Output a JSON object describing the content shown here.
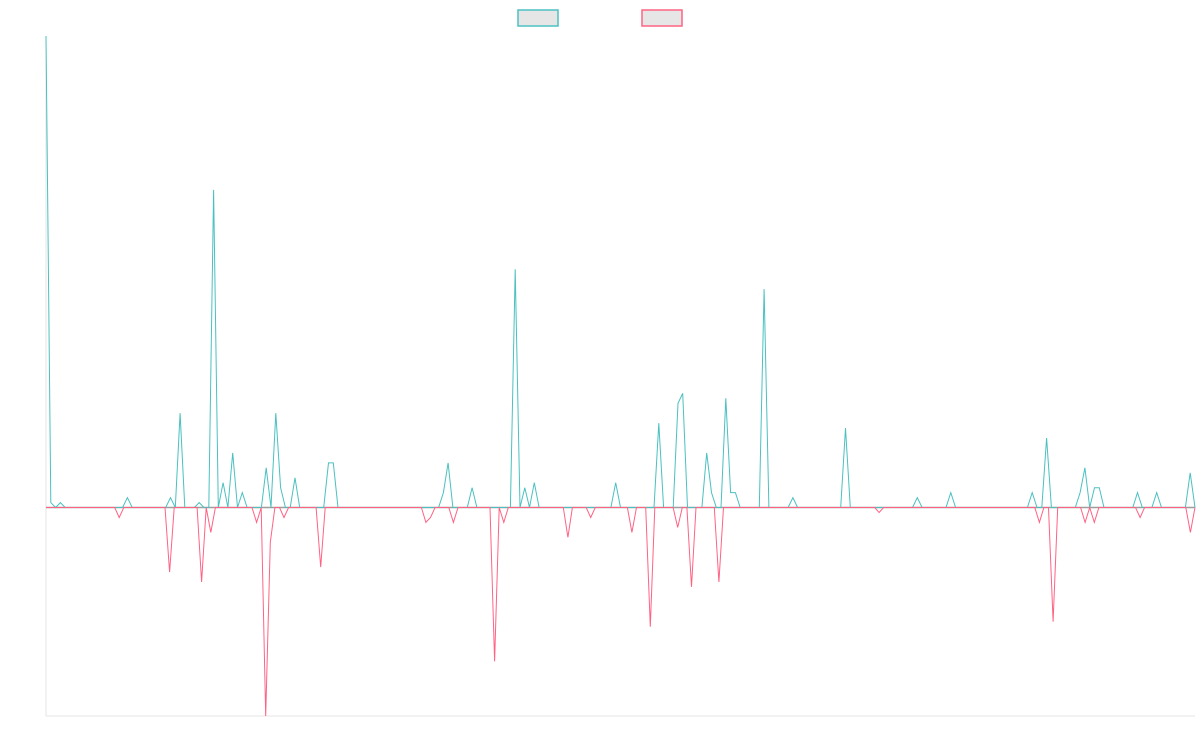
{
  "chart_data": {
    "type": "line",
    "title": "",
    "xlabel": "",
    "ylabel": "",
    "x_range": [
      0,
      200
    ],
    "ylim": [
      -0.42,
      0.95
    ],
    "grid": false,
    "legend": "top-center",
    "series": [
      {
        "color": "#4BC0C0",
        "fill": "#E6E6E6",
        "values": [
          0.95,
          0.01,
          0,
          0.01,
          0,
          0,
          0,
          0,
          0,
          0,
          0,
          0,
          0,
          0,
          0,
          0,
          0,
          0.02,
          0,
          0,
          0,
          0,
          0,
          0,
          0,
          0,
          0.02,
          0,
          0.19,
          0,
          0,
          0,
          0.01,
          0,
          0,
          0.64,
          0,
          0.05,
          0,
          0.11,
          0,
          0.03,
          0,
          0,
          0,
          0,
          0.08,
          0,
          0.19,
          0.04,
          0,
          0,
          0.06,
          0,
          0,
          0,
          0,
          0,
          0,
          0.09,
          0.09,
          0,
          0,
          0,
          0,
          0,
          0,
          0,
          0,
          0,
          0,
          0,
          0,
          0,
          0,
          0,
          0,
          0,
          0,
          0,
          0,
          0,
          0,
          0.03,
          0.09,
          0,
          0,
          0,
          0,
          0.04,
          0,
          0,
          0,
          0,
          0,
          0,
          0,
          0,
          0.48,
          0,
          0.04,
          0,
          0.05,
          0,
          0,
          0,
          0,
          0,
          0,
          0,
          0,
          0,
          0,
          0,
          0,
          0,
          0,
          0,
          0,
          0.05,
          0,
          0,
          0,
          0,
          0,
          0,
          0,
          0,
          0.17,
          0,
          0,
          0,
          0.21,
          0.23,
          0,
          0,
          0,
          0,
          0.11,
          0.03,
          0,
          0,
          0.22,
          0.03,
          0.03,
          0,
          0,
          0,
          0,
          0,
          0.44,
          0,
          0,
          0,
          0,
          0,
          0.02,
          0,
          0,
          0,
          0,
          0,
          0,
          0,
          0,
          0,
          0,
          0.16,
          0,
          0,
          0,
          0,
          0,
          0,
          0,
          0,
          0,
          0,
          0,
          0,
          0,
          0,
          0.02,
          0,
          0,
          0,
          0,
          0,
          0,
          0.03,
          0,
          0,
          0,
          0,
          0,
          0,
          0,
          0,
          0,
          0,
          0,
          0,
          0,
          0,
          0,
          0,
          0.03,
          0,
          0,
          0.14,
          0,
          0,
          0,
          0,
          0,
          0,
          0.03,
          0.08,
          0,
          0.04,
          0.04,
          0,
          0,
          0,
          0,
          0,
          0,
          0,
          0.03,
          0,
          0,
          0,
          0.03,
          0,
          0,
          0,
          0,
          0,
          0,
          0.07,
          0
        ]
      },
      {
        "color": "#FF6384",
        "fill": "#E6E6E6",
        "values": [
          0,
          0,
          0,
          0,
          0,
          0,
          0,
          0,
          0,
          0,
          0,
          0,
          0,
          0,
          0,
          0,
          -0.02,
          0,
          0,
          0,
          0,
          0,
          0,
          0,
          0,
          0,
          0,
          -0.13,
          0,
          0,
          0,
          0,
          0,
          0,
          -0.15,
          0,
          -0.05,
          0,
          0,
          0,
          0,
          0,
          0,
          0,
          0,
          0,
          -0.03,
          0,
          -0.42,
          -0.07,
          0,
          0,
          -0.02,
          0,
          0,
          0,
          0,
          0,
          0,
          0,
          -0.12,
          0,
          0,
          0,
          0,
          0,
          0,
          0,
          0,
          0,
          0,
          0,
          0,
          0,
          0,
          0,
          0,
          0,
          0,
          0,
          0,
          0,
          0,
          -0.03,
          -0.02,
          0,
          0,
          0,
          0,
          -0.03,
          0,
          0,
          0,
          0,
          0,
          0,
          0,
          0,
          -0.31,
          0,
          -0.03,
          0,
          0,
          0,
          0,
          0,
          0,
          0,
          0,
          0,
          0,
          0,
          0,
          0,
          -0.06,
          0,
          0,
          0,
          0,
          -0.02,
          0,
          0,
          0,
          0,
          0,
          0,
          0,
          0,
          -0.05,
          0,
          0,
          0,
          -0.24,
          0,
          0,
          0,
          0,
          0,
          -0.04,
          0,
          0,
          -0.16,
          0,
          0,
          0,
          0,
          0,
          -0.15,
          0,
          0,
          0,
          0,
          0,
          0,
          0,
          0,
          0,
          0,
          0,
          0,
          0,
          0,
          0,
          0,
          0,
          0,
          0,
          0,
          0,
          0,
          0,
          0,
          0,
          0,
          0,
          0,
          0,
          0,
          0,
          0,
          0,
          0,
          -0.01,
          0,
          0,
          0,
          0,
          0,
          0,
          0,
          0,
          0,
          0,
          0,
          0,
          0,
          0,
          0,
          0,
          0,
          0,
          0,
          0,
          0,
          0,
          0,
          0,
          0,
          0,
          0,
          0,
          0,
          0,
          0,
          0,
          0,
          0,
          -0.03,
          0,
          0,
          -0.23,
          0,
          0,
          0,
          0,
          0,
          0,
          -0.03,
          0,
          -0.03,
          0,
          0,
          0,
          0,
          0,
          0,
          0,
          0,
          0,
          -0.02,
          0,
          0,
          0,
          0,
          0,
          0,
          0,
          0,
          0,
          0,
          -0.05,
          0
        ]
      }
    ],
    "legend_entries": [
      {
        "color": "#4BC0C0"
      },
      {
        "color": "#FF6384"
      }
    ],
    "axis_color": "#E6E6E6",
    "zero_line_color": "#9E9E9E"
  }
}
